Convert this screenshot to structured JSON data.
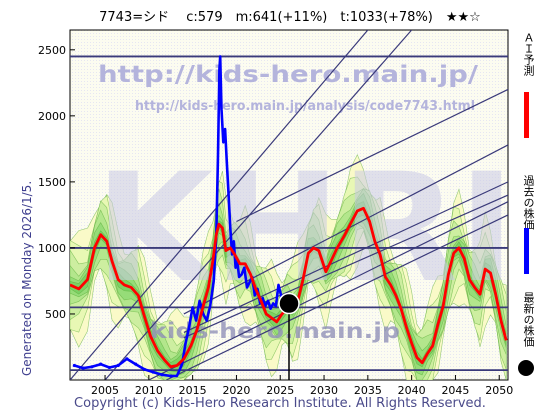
{
  "header": {
    "title": "7743=シド　 c:579　m:641(+11%)　t:1033(+78%)　★★☆"
  },
  "watermark": {
    "url_main": "http://kids-hero.main.jp/",
    "url_sub": "http://kids-hero.main.jp/analysis/code7743.html",
    "big_text": "KHRI",
    "mid_text": "kids-hero.main.jp"
  },
  "side_caption": "Generated on Monday 2026/1/5.",
  "footer": "Copyright (c) Kids-Hero Research Institute. All Rights Reserved.",
  "legend": {
    "items": [
      {
        "label": "ＡＩ予測",
        "color": "#ff0000"
      },
      {
        "label": "過去の株価",
        "color": "#0000ff"
      },
      {
        "label": "最新の株価",
        "color": "#000000"
      }
    ]
  },
  "chart_data": {
    "type": "line",
    "xlim": [
      2001,
      2051
    ],
    "ylim": [
      0,
      2650
    ],
    "xticks": [
      2005,
      2010,
      2015,
      2020,
      2025,
      2030,
      2035,
      2040,
      2045,
      2050
    ],
    "yticks": [
      500,
      1000,
      1500,
      2000,
      2500
    ],
    "hlines": [
      2450,
      1000,
      550,
      75
    ],
    "latest": {
      "x": 2026.0,
      "y": 579
    },
    "series": [
      {
        "name": "過去の株価",
        "color": "#0000ff",
        "points": [
          [
            2001.5,
            110
          ],
          [
            2002.5,
            90
          ],
          [
            2003.5,
            100
          ],
          [
            2004.5,
            120
          ],
          [
            2005.5,
            95
          ],
          [
            2006.5,
            110
          ],
          [
            2007.5,
            160
          ],
          [
            2008.5,
            120
          ],
          [
            2009.5,
            80
          ],
          [
            2010.5,
            60
          ],
          [
            2011.5,
            40
          ],
          [
            2012.5,
            30
          ],
          [
            2013.2,
            30
          ],
          [
            2013.8,
            120
          ],
          [
            2014.2,
            280
          ],
          [
            2014.6,
            400
          ],
          [
            2015.0,
            550
          ],
          [
            2015.4,
            450
          ],
          [
            2015.8,
            600
          ],
          [
            2016.2,
            500
          ],
          [
            2016.6,
            450
          ],
          [
            2017.0,
            560
          ],
          [
            2017.4,
            750
          ],
          [
            2017.7,
            1100
          ],
          [
            2017.9,
            1700
          ],
          [
            2018.05,
            2350
          ],
          [
            2018.15,
            2450
          ],
          [
            2018.3,
            2050
          ],
          [
            2018.5,
            1800
          ],
          [
            2018.7,
            1900
          ],
          [
            2018.9,
            1650
          ],
          [
            2019.1,
            1400
          ],
          [
            2019.3,
            1150
          ],
          [
            2019.5,
            950
          ],
          [
            2019.7,
            1050
          ],
          [
            2019.9,
            850
          ],
          [
            2020.1,
            900
          ],
          [
            2020.3,
            780
          ],
          [
            2020.6,
            800
          ],
          [
            2020.9,
            850
          ],
          [
            2021.2,
            700
          ],
          [
            2021.5,
            740
          ],
          [
            2021.8,
            780
          ],
          [
            2022.1,
            640
          ],
          [
            2022.4,
            690
          ],
          [
            2022.7,
            580
          ],
          [
            2023.0,
            620
          ],
          [
            2023.3,
            560
          ],
          [
            2023.6,
            600
          ],
          [
            2023.9,
            540
          ],
          [
            2024.2,
            580
          ],
          [
            2024.5,
            560
          ],
          [
            2024.8,
            720
          ],
          [
            2025.1,
            640
          ],
          [
            2025.4,
            590
          ],
          [
            2025.7,
            560
          ],
          [
            2026.0,
            579
          ]
        ]
      },
      {
        "name": "ＡＩ予測",
        "color": "#ff0000",
        "points": [
          [
            2001,
            720
          ],
          [
            2002,
            690
          ],
          [
            2003,
            760
          ],
          [
            2003.8,
            1000
          ],
          [
            2004.5,
            1100
          ],
          [
            2005.2,
            1050
          ],
          [
            2005.8,
            900
          ],
          [
            2006.5,
            760
          ],
          [
            2007.2,
            720
          ],
          [
            2008,
            700
          ],
          [
            2008.8,
            640
          ],
          [
            2009.5,
            480
          ],
          [
            2010.2,
            330
          ],
          [
            2011,
            220
          ],
          [
            2011.8,
            150
          ],
          [
            2012.5,
            100
          ],
          [
            2013.2,
            110
          ],
          [
            2014,
            160
          ],
          [
            2014.8,
            260
          ],
          [
            2015.5,
            380
          ],
          [
            2016.2,
            560
          ],
          [
            2016.8,
            700
          ],
          [
            2017.3,
            900
          ],
          [
            2017.7,
            1100
          ],
          [
            2018,
            1180
          ],
          [
            2018.4,
            1150
          ],
          [
            2018.8,
            980
          ],
          [
            2019.3,
            1000
          ],
          [
            2019.8,
            950
          ],
          [
            2020.4,
            880
          ],
          [
            2021,
            880
          ],
          [
            2021.6,
            800
          ],
          [
            2022.2,
            690
          ],
          [
            2022.8,
            600
          ],
          [
            2023.4,
            500
          ],
          [
            2024,
            470
          ],
          [
            2024.6,
            440
          ],
          [
            2025.2,
            500
          ],
          [
            2025.8,
            540
          ],
          [
            2026.4,
            520
          ],
          [
            2027,
            600
          ],
          [
            2027.6,
            760
          ],
          [
            2028.2,
            960
          ],
          [
            2028.8,
            1000
          ],
          [
            2029.4,
            980
          ],
          [
            2030.2,
            820
          ],
          [
            2030.8,
            900
          ],
          [
            2031.5,
            1000
          ],
          [
            2032.3,
            1090
          ],
          [
            2033,
            1180
          ],
          [
            2033.8,
            1280
          ],
          [
            2034.5,
            1300
          ],
          [
            2035.2,
            1200
          ],
          [
            2035.8,
            1050
          ],
          [
            2036.4,
            950
          ],
          [
            2037,
            780
          ],
          [
            2037.6,
            720
          ],
          [
            2038.2,
            640
          ],
          [
            2038.8,
            540
          ],
          [
            2039.4,
            400
          ],
          [
            2040,
            280
          ],
          [
            2040.6,
            170
          ],
          [
            2041.2,
            130
          ],
          [
            2041.8,
            200
          ],
          [
            2042.4,
            260
          ],
          [
            2043,
            420
          ],
          [
            2043.6,
            560
          ],
          [
            2044.2,
            800
          ],
          [
            2044.8,
            960
          ],
          [
            2045.4,
            1000
          ],
          [
            2046,
            920
          ],
          [
            2046.6,
            760
          ],
          [
            2047.2,
            700
          ],
          [
            2047.8,
            650
          ],
          [
            2048.4,
            840
          ],
          [
            2049,
            810
          ],
          [
            2049.6,
            650
          ],
          [
            2050.2,
            450
          ],
          [
            2050.8,
            300
          ]
        ]
      }
    ]
  }
}
